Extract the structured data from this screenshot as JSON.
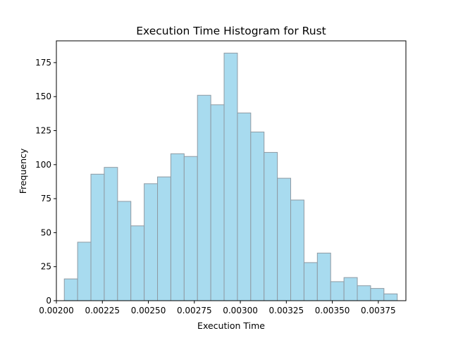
{
  "chart_data": {
    "type": "bar",
    "title": "Execution Time Histogram for Rust",
    "xlabel": "Execution Time",
    "ylabel": "Frequency",
    "xlim": [
      0.002,
      0.0039
    ],
    "ylim": [
      0,
      191
    ],
    "grid": false,
    "bar_color": "#a8dbef",
    "edge_color": "#8f9aa3",
    "bin_start": 0.002043,
    "bin_width": 7.24e-05,
    "values": [
      16,
      43,
      93,
      98,
      73,
      55,
      86,
      91,
      108,
      106,
      151,
      144,
      182,
      138,
      124,
      109,
      90,
      74,
      28,
      35,
      14,
      17,
      11,
      9,
      5
    ],
    "x_ticks": [
      0.002,
      0.00225,
      0.0025,
      0.00275,
      0.003,
      0.00325,
      0.0035,
      0.00375
    ],
    "x_tick_labels": [
      "0.00200",
      "0.00225",
      "0.00250",
      "0.00275",
      "0.00300",
      "0.00325",
      "0.00350",
      "0.00375"
    ],
    "y_ticks": [
      0,
      25,
      50,
      75,
      100,
      125,
      150,
      175
    ],
    "y_tick_labels": [
      "0",
      "25",
      "50",
      "75",
      "100",
      "125",
      "150",
      "175"
    ]
  }
}
